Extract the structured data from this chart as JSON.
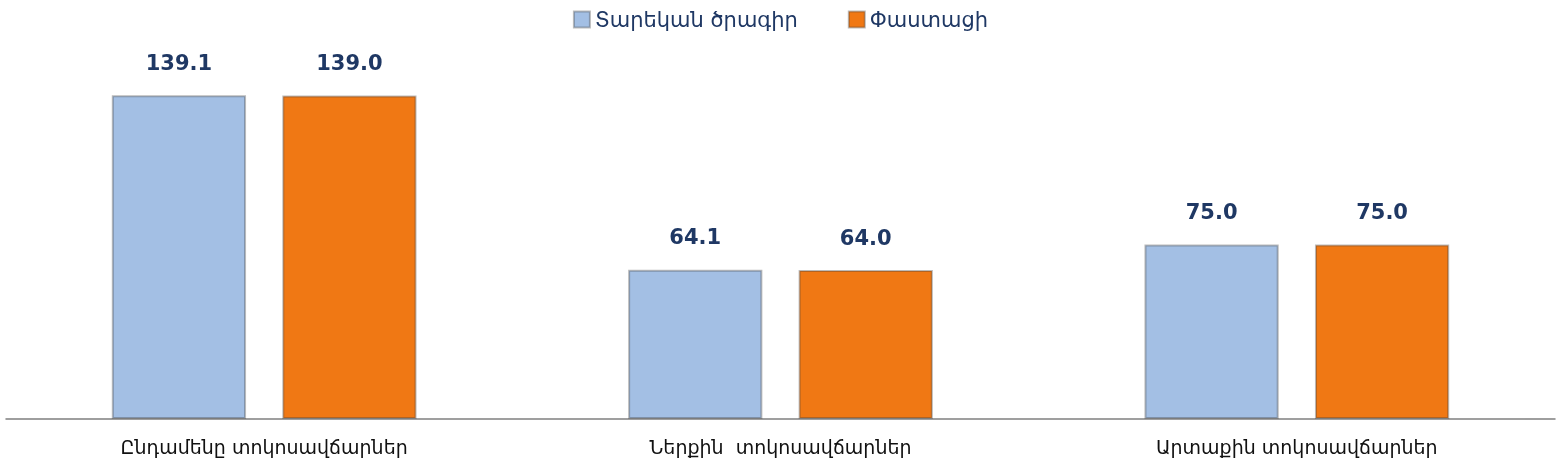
{
  "chart_data": {
    "type": "bar",
    "categories": [
      "Ընդամենը տոկոսավճարներ",
      "Ներքին  տոկոսավճարներ",
      "Արտաքին տոկոսավճարներ"
    ],
    "series": [
      {
        "name": "Տարեկան ծրագիր",
        "color": "#a3bfe4",
        "values": [
          139.1,
          64.1,
          75.0
        ],
        "value_labels": [
          "139.1",
          "64.1",
          "75.0"
        ]
      },
      {
        "name": "Փաստացի",
        "color": "#f07814",
        "values": [
          139.0,
          64.0,
          75.0
        ],
        "value_labels": [
          "139.0",
          "64.0",
          "75.0"
        ]
      }
    ],
    "legend": "top"
  }
}
